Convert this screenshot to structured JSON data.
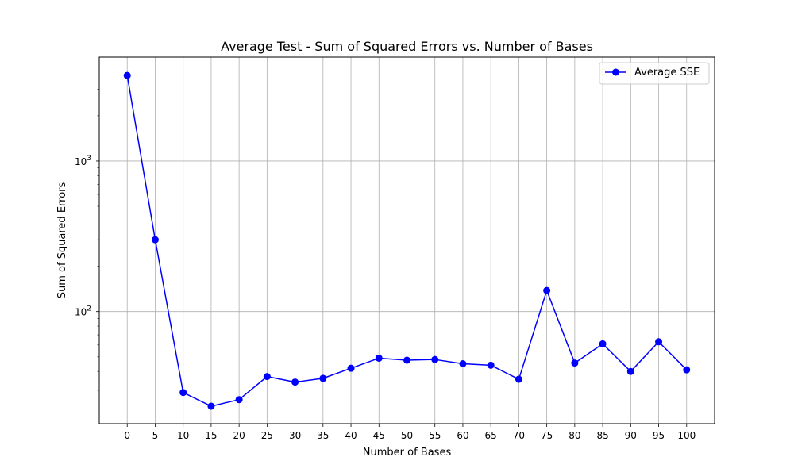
{
  "chart_data": {
    "type": "line",
    "title": "Average Test - Sum of Squared Errors vs. Number of Bases",
    "xlabel": "Number of Bases",
    "ylabel": "Sum of Squared Errors",
    "x": [
      0,
      5,
      10,
      15,
      20,
      25,
      30,
      35,
      40,
      45,
      50,
      55,
      60,
      65,
      70,
      75,
      80,
      85,
      90,
      95,
      100
    ],
    "x_ticks": [
      "0",
      "5",
      "10",
      "15",
      "20",
      "25",
      "30",
      "35",
      "40",
      "45",
      "50",
      "55",
      "60",
      "65",
      "70",
      "75",
      "80",
      "85",
      "90",
      "95",
      "100"
    ],
    "y_major_ticks": [
      {
        "value": 100,
        "base": "10",
        "exp": "2"
      },
      {
        "value": 1000,
        "base": "10",
        "exp": "3"
      }
    ],
    "y_minor_ticks": [
      20,
      30,
      40,
      50,
      60,
      70,
      80,
      90,
      200,
      300,
      400,
      500,
      600,
      700,
      800,
      900,
      2000,
      3000
    ],
    "xlim": [
      -5,
      105
    ],
    "ylim": [
      18,
      4900
    ],
    "y_scale": "log",
    "grid": true,
    "legend_position": "top-right",
    "series": [
      {
        "name": "Average SSE",
        "color": "#0000ff",
        "marker": "circle",
        "values": [
          3700,
          300,
          29,
          23.5,
          26,
          37,
          34,
          36,
          42,
          49,
          47.5,
          48,
          45,
          44,
          35.5,
          138,
          45.5,
          61,
          40,
          63,
          41
        ]
      }
    ]
  }
}
